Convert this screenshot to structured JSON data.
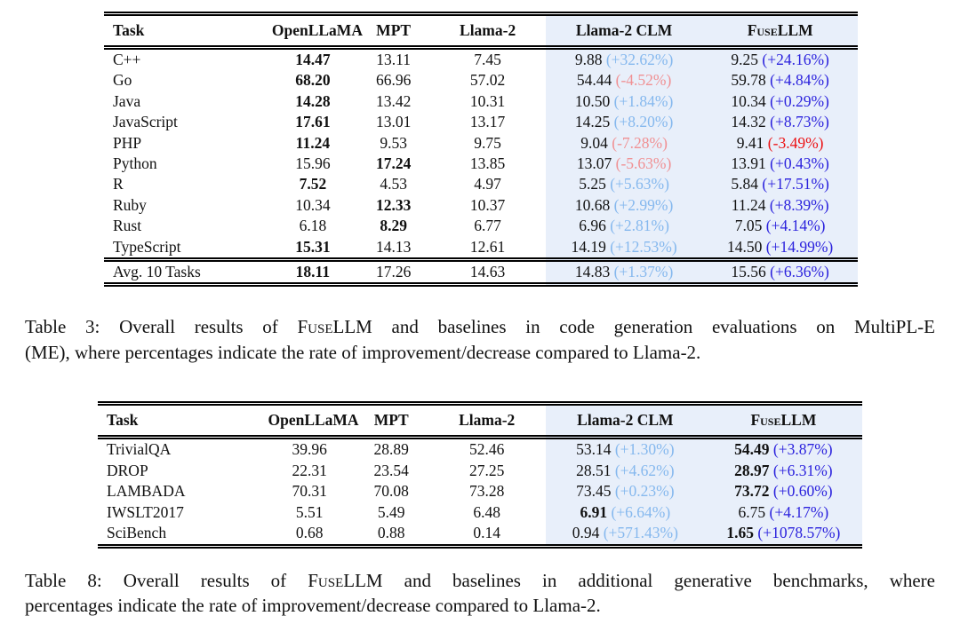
{
  "colors": {
    "highlight_bg": "#e8effa",
    "clm_positive": "#85b8ee",
    "clm_negative": "#f09093",
    "fuse_positive": "#2b22dd",
    "fuse_negative": "#ec1113"
  },
  "table3": {
    "headers": [
      "Task",
      "OpenLLaMA",
      "MPT",
      "Llama-2",
      "Llama-2 CLM",
      "FuseLLM"
    ],
    "rows": [
      [
        "C++",
        {
          "v": "14.47",
          "b": true
        },
        {
          "v": "13.11"
        },
        {
          "v": "7.45"
        },
        {
          "v": "9.88",
          "p": "(+32.62%)"
        },
        {
          "v": "9.25",
          "p": "(+24.16%)"
        }
      ],
      [
        "Go",
        {
          "v": "68.20",
          "b": true
        },
        {
          "v": "66.96"
        },
        {
          "v": "57.02"
        },
        {
          "v": "54.44",
          "p": "(-4.52%)"
        },
        {
          "v": "59.78",
          "p": "(+4.84%)"
        }
      ],
      [
        "Java",
        {
          "v": "14.28",
          "b": true
        },
        {
          "v": "13.42"
        },
        {
          "v": "10.31"
        },
        {
          "v": "10.50",
          "p": "(+1.84%)"
        },
        {
          "v": "10.34",
          "p": "(+0.29%)"
        }
      ],
      [
        "JavaScript",
        {
          "v": "17.61",
          "b": true
        },
        {
          "v": "13.01"
        },
        {
          "v": "13.17"
        },
        {
          "v": "14.25",
          "p": "(+8.20%)"
        },
        {
          "v": "14.32",
          "p": "(+8.73%)"
        }
      ],
      [
        "PHP",
        {
          "v": "11.24",
          "b": true
        },
        {
          "v": "9.53"
        },
        {
          "v": "9.75"
        },
        {
          "v": "9.04",
          "p": "(-7.28%)"
        },
        {
          "v": "9.41",
          "p": "(-3.49%)"
        }
      ],
      [
        "Python",
        {
          "v": "15.96"
        },
        {
          "v": "17.24",
          "b": true
        },
        {
          "v": "13.85"
        },
        {
          "v": "13.07",
          "p": "(-5.63%)"
        },
        {
          "v": "13.91",
          "p": "(+0.43%)"
        }
      ],
      [
        "R",
        {
          "v": "7.52",
          "b": true
        },
        {
          "v": "4.53"
        },
        {
          "v": "4.97"
        },
        {
          "v": "5.25",
          "p": "(+5.63%)"
        },
        {
          "v": "5.84",
          "p": "(+17.51%)"
        }
      ],
      [
        "Ruby",
        {
          "v": "10.34"
        },
        {
          "v": "12.33",
          "b": true
        },
        {
          "v": "10.37"
        },
        {
          "v": "10.68",
          "p": "(+2.99%)"
        },
        {
          "v": "11.24",
          "p": "(+8.39%)"
        }
      ],
      [
        "Rust",
        {
          "v": "6.18"
        },
        {
          "v": "8.29",
          "b": true
        },
        {
          "v": "6.77"
        },
        {
          "v": "6.96",
          "p": "(+2.81%)"
        },
        {
          "v": "7.05",
          "p": "(+4.14%)"
        }
      ],
      [
        "TypeScript",
        {
          "v": "15.31",
          "b": true
        },
        {
          "v": "14.13"
        },
        {
          "v": "12.61"
        },
        {
          "v": "14.19",
          "p": "(+12.53%)"
        },
        {
          "v": "14.50",
          "p": "(+14.99%)"
        }
      ]
    ],
    "footer": [
      "Avg. 10 Tasks",
      {
        "v": "18.11",
        "b": true
      },
      {
        "v": "17.26"
      },
      {
        "v": "14.63"
      },
      {
        "v": "14.83",
        "p": "(+1.37%)"
      },
      {
        "v": "15.56",
        "p": "(+6.36%)"
      }
    ],
    "caption": {
      "line1_prefix": "Table 3: Overall results of ",
      "brand": "FuseLLM",
      "line1_suffix": " and baselines in code generation evaluations on MultiPL-E",
      "line2": "(ME), where percentages indicate the rate of improvement/decrease compared to Llama-2."
    }
  },
  "table8": {
    "headers": [
      "Task",
      "OpenLLaMA",
      "MPT",
      "Llama-2",
      "Llama-2 CLM",
      "FuseLLM"
    ],
    "rows": [
      [
        "TrivialQA",
        {
          "v": "39.96"
        },
        {
          "v": "28.89"
        },
        {
          "v": "52.46"
        },
        {
          "v": "53.14",
          "p": "(+1.30%)"
        },
        {
          "v": "54.49",
          "b": true,
          "p": "(+3.87%)"
        }
      ],
      [
        "DROP",
        {
          "v": "22.31"
        },
        {
          "v": "23.54"
        },
        {
          "v": "27.25"
        },
        {
          "v": "28.51",
          "p": "(+4.62%)"
        },
        {
          "v": "28.97",
          "b": true,
          "p": "(+6.31%)"
        }
      ],
      [
        "LAMBADA",
        {
          "v": "70.31"
        },
        {
          "v": "70.08"
        },
        {
          "v": "73.28"
        },
        {
          "v": "73.45",
          "p": "(+0.23%)"
        },
        {
          "v": "73.72",
          "b": true,
          "p": "(+0.60%)"
        }
      ],
      [
        "IWSLT2017",
        {
          "v": "5.51"
        },
        {
          "v": "5.49"
        },
        {
          "v": "6.48"
        },
        {
          "v": "6.91",
          "b": true,
          "p": "(+6.64%)"
        },
        {
          "v": "6.75",
          "p": "(+4.17%)"
        }
      ],
      [
        "SciBench",
        {
          "v": "0.68"
        },
        {
          "v": "0.88"
        },
        {
          "v": "0.14"
        },
        {
          "v": "0.94",
          "p": "(+571.43%)"
        },
        {
          "v": "1.65",
          "b": true,
          "p": "(+1078.57%)"
        }
      ]
    ],
    "caption": {
      "line1_prefix": "Table 8: Overall results of ",
      "brand": "FuseLLM",
      "line1_suffix": " and baselines in additional generative benchmarks, where",
      "line2": "percentages indicate the rate of improvement/decrease compared to Llama-2."
    }
  }
}
